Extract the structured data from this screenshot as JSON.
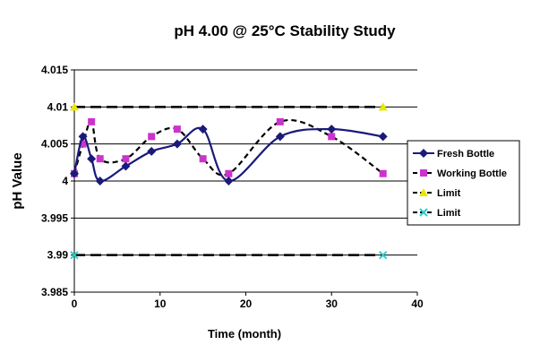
{
  "chart_data": {
    "type": "line",
    "title": "pH 4.00 @ 25°C Stability Study",
    "xlabel": "Time (month)",
    "ylabel": "pH Value",
    "xlim": [
      0,
      40
    ],
    "ylim": [
      3.985,
      4.015
    ],
    "x_ticks": [
      "0",
      "10",
      "20",
      "30",
      "40"
    ],
    "y_ticks": [
      "4.015",
      "4.01",
      "4.005",
      "4",
      "3.995",
      "3.99",
      "3.985"
    ],
    "grid": "horizontal",
    "legend_position": "right",
    "series": [
      {
        "name": "Fresh Bottle",
        "color": "#1a1a7a",
        "marker": "diamond",
        "line": "solid",
        "x": [
          0,
          1,
          2,
          3,
          6,
          9,
          12,
          15,
          18,
          24,
          30,
          36
        ],
        "y": [
          4.001,
          4.006,
          4.003,
          4.0,
          4.002,
          4.004,
          4.005,
          4.007,
          4.0,
          4.006,
          4.007,
          4.006
        ]
      },
      {
        "name": "Working Bottle",
        "color": "#cc33cc",
        "marker": "square",
        "line": "dashed",
        "x": [
          0,
          1,
          2,
          3,
          6,
          9,
          12,
          15,
          18,
          24,
          30,
          36
        ],
        "y": [
          4.001,
          4.005,
          4.008,
          4.003,
          4.003,
          4.006,
          4.007,
          4.003,
          4.001,
          4.008,
          4.006,
          4.001
        ]
      },
      {
        "name": "Limit",
        "color": "#e8e800",
        "marker": "triangle",
        "line": "dashed",
        "x": [
          0,
          36
        ],
        "y": [
          4.01,
          4.01
        ]
      },
      {
        "name": "Limit",
        "color": "#33cccc",
        "marker": "x",
        "line": "dashed",
        "x": [
          0,
          36
        ],
        "y": [
          3.99,
          3.99
        ]
      }
    ]
  }
}
